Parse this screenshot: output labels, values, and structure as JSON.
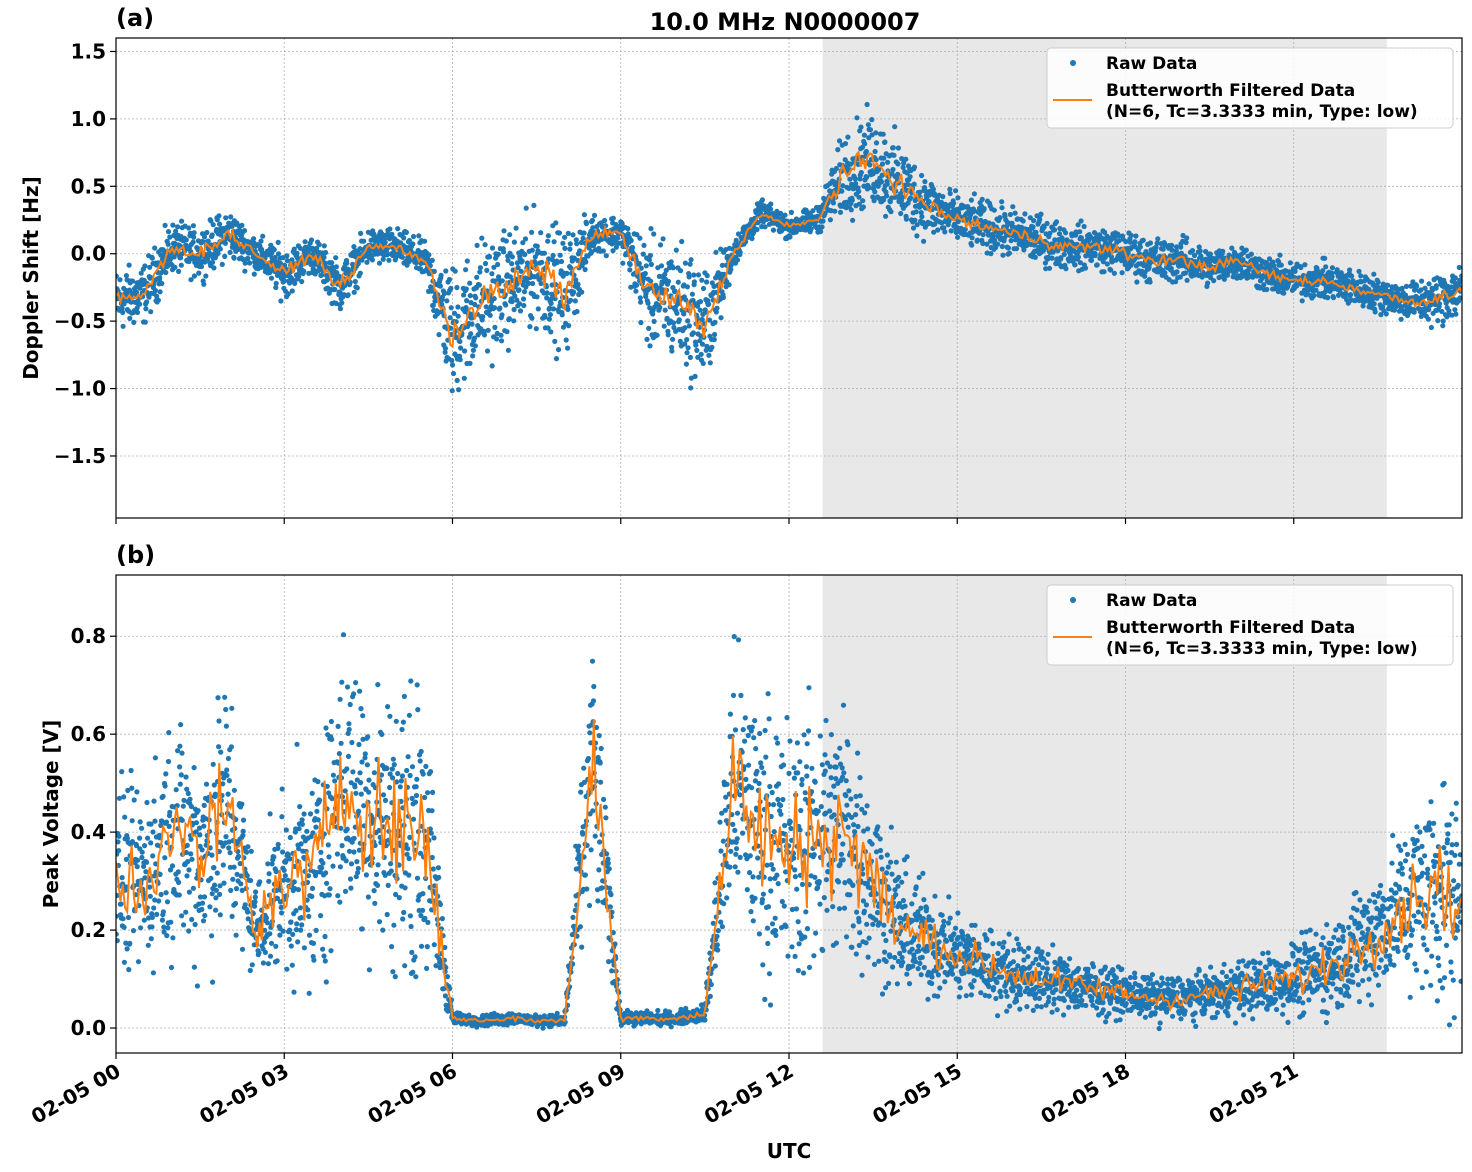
{
  "title": "10.0 MHz N0000007",
  "chart_data": [
    {
      "type": "scatter",
      "panel_label": "(a)",
      "ylabel": "Doppler Shift [Hz]",
      "xlabel": "",
      "xlim_hours_utc": [
        0,
        24
      ],
      "ylim": [
        -1.96,
        1.6
      ],
      "yticks": [
        -1.5,
        -1.0,
        -0.5,
        0.0,
        0.5,
        1.0,
        1.5
      ],
      "ytick_labels": [
        "−1.5",
        "−1.0",
        "−0.5",
        "0.0",
        "0.5",
        "1.0",
        "1.5"
      ],
      "grid": true,
      "legend_placement": "top-right",
      "shaded_region_hours": [
        12.6,
        22.66
      ],
      "colors": {
        "raw": "#1f77b4",
        "filtered": "#ff7f0e",
        "shade": "#e8e8e8"
      },
      "legend": [
        "Raw Data",
        "Butterworth Filtered Data",
        "(N=6, Tc=3.3333 min, Type: low)"
      ],
      "x_hours": [
        0,
        0.5,
        1,
        1.5,
        2,
        2.5,
        3,
        3.5,
        4,
        4.5,
        5,
        5.5,
        6,
        6.5,
        7,
        7.5,
        8,
        8.5,
        9,
        9.5,
        10,
        10.5,
        11,
        11.5,
        12,
        12.5,
        13,
        13.5,
        14,
        14.5,
        15,
        15.5,
        16,
        16.5,
        17,
        17.5,
        18,
        18.5,
        19,
        19.5,
        20,
        20.5,
        21,
        21.5,
        22,
        22.5,
        23,
        23.5,
        24
      ],
      "filtered": [
        -0.35,
        -0.3,
        0.05,
        0.0,
        0.15,
        0.0,
        -0.15,
        0.0,
        -0.25,
        0.05,
        0.05,
        -0.05,
        -0.6,
        -0.35,
        -0.25,
        -0.1,
        -0.3,
        0.15,
        0.15,
        -0.3,
        -0.35,
        -0.55,
        0.0,
        0.3,
        0.2,
        0.25,
        0.6,
        0.7,
        0.5,
        0.35,
        0.25,
        0.2,
        0.15,
        0.1,
        0.05,
        0.05,
        0.0,
        -0.05,
        -0.05,
        -0.1,
        -0.05,
        -0.15,
        -0.2,
        -0.2,
        -0.25,
        -0.3,
        -0.35,
        -0.35,
        -0.25
      ],
      "raw_spread": [
        0.25,
        0.25,
        0.2,
        0.2,
        0.2,
        0.15,
        0.2,
        0.15,
        0.2,
        0.15,
        0.15,
        0.15,
        0.55,
        0.5,
        0.45,
        0.45,
        0.5,
        0.15,
        0.15,
        0.45,
        0.5,
        0.5,
        0.12,
        0.1,
        0.1,
        0.1,
        0.35,
        0.4,
        0.35,
        0.25,
        0.2,
        0.2,
        0.2,
        0.2,
        0.18,
        0.18,
        0.18,
        0.18,
        0.18,
        0.15,
        0.15,
        0.15,
        0.15,
        0.15,
        0.15,
        0.15,
        0.15,
        0.2,
        0.25
      ]
    },
    {
      "type": "scatter",
      "panel_label": "(b)",
      "ylabel": "Peak Voltage [V]",
      "xlabel": "UTC",
      "xlim_hours_utc": [
        0,
        24
      ],
      "ylim": [
        -0.051,
        0.925
      ],
      "yticks": [
        0.0,
        0.2,
        0.4,
        0.6,
        0.8
      ],
      "ytick_labels": [
        "0.0",
        "0.2",
        "0.4",
        "0.6",
        "0.8"
      ],
      "xticks_hours": [
        0,
        3,
        6,
        9,
        12,
        15,
        18,
        21
      ],
      "xtick_labels": [
        "02-05 00",
        "02-05 03",
        "02-05 06",
        "02-05 09",
        "02-05 12",
        "02-05 15",
        "02-05 18",
        "02-05 21"
      ],
      "grid": true,
      "legend_placement": "top-right",
      "shaded_region_hours": [
        12.6,
        22.66
      ],
      "colors": {
        "raw": "#1f77b4",
        "filtered": "#ff7f0e",
        "shade": "#e8e8e8"
      },
      "legend": [
        "Raw Data",
        "Butterworth Filtered Data",
        "(N=6, Tc=3.3333 min, Type: low)"
      ],
      "x_hours": [
        0,
        0.5,
        1,
        1.5,
        2,
        2.5,
        3,
        3.5,
        4,
        4.5,
        5,
        5.5,
        6,
        6.5,
        7,
        7.5,
        8,
        8.5,
        9,
        9.5,
        10,
        10.5,
        11,
        11.5,
        12,
        12.5,
        13,
        13.5,
        14,
        14.5,
        15,
        15.5,
        16,
        16.5,
        17,
        17.5,
        18,
        18.5,
        19,
        19.5,
        20,
        20.5,
        21,
        21.5,
        22,
        22.5,
        23,
        23.5,
        24
      ],
      "filtered": [
        0.3,
        0.3,
        0.4,
        0.35,
        0.45,
        0.2,
        0.3,
        0.3,
        0.5,
        0.45,
        0.4,
        0.4,
        0.02,
        0.015,
        0.02,
        0.015,
        0.015,
        0.55,
        0.02,
        0.02,
        0.02,
        0.03,
        0.5,
        0.4,
        0.35,
        0.4,
        0.4,
        0.3,
        0.2,
        0.18,
        0.15,
        0.13,
        0.11,
        0.1,
        0.09,
        0.08,
        0.07,
        0.06,
        0.06,
        0.07,
        0.08,
        0.09,
        0.1,
        0.12,
        0.15,
        0.2,
        0.25,
        0.3,
        0.25
      ],
      "raw_spread": [
        0.2,
        0.2,
        0.25,
        0.25,
        0.3,
        0.1,
        0.2,
        0.25,
        0.3,
        0.3,
        0.3,
        0.3,
        0.015,
        0.012,
        0.015,
        0.012,
        0.015,
        0.3,
        0.015,
        0.015,
        0.015,
        0.02,
        0.3,
        0.3,
        0.3,
        0.3,
        0.3,
        0.2,
        0.15,
        0.12,
        0.1,
        0.09,
        0.08,
        0.07,
        0.06,
        0.06,
        0.05,
        0.05,
        0.05,
        0.05,
        0.06,
        0.07,
        0.08,
        0.1,
        0.12,
        0.15,
        0.18,
        0.25,
        0.25
      ]
    }
  ]
}
